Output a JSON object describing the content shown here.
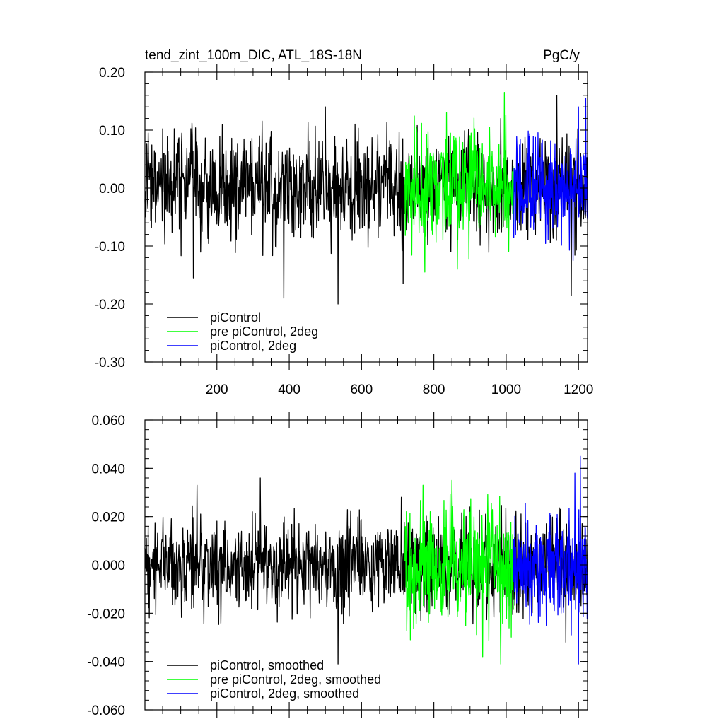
{
  "chart_data": [
    {
      "type": "line",
      "title": "tend_zint_100m_DIC, ATL_18S-18N",
      "units_label": "PgC/y",
      "xlabel": "",
      "ylabel": "",
      "xlim": [
        1,
        1225
      ],
      "ylim": [
        -0.3,
        0.2
      ],
      "xticks": [
        200,
        400,
        600,
        800,
        1000,
        1200
      ],
      "xtick_labels": [
        "200",
        "400",
        "600",
        "800",
        "1000",
        "1200"
      ],
      "show_xtick_labels": true,
      "yticks": [
        0.2,
        0.1,
        0.0,
        -0.1,
        -0.2,
        -0.3
      ],
      "ytick_labels": [
        "0.20",
        "0.10",
        "0.00",
        "-0.10",
        "-0.20",
        "-0.30"
      ],
      "grid": false,
      "legend_position": "bottom-left",
      "series": [
        {
          "name": "piControl",
          "color": "#000000",
          "x_start": 1,
          "x_end": 1225,
          "mean": 0.0,
          "std": 0.045,
          "extremes": [
            [
              715,
              -0.165
            ],
            [
              385,
              -0.19
            ],
            [
              535,
              -0.2
            ],
            [
              1180,
              -0.185
            ],
            [
              135,
              -0.155
            ],
            [
              500,
              0.14
            ],
            [
              1140,
              0.16
            ],
            [
              985,
              0.12
            ]
          ]
        },
        {
          "name": "pre piControl, 2deg",
          "color": "#00ff00",
          "x_start": 720,
          "x_end": 1020,
          "mean": 0.0,
          "std": 0.05,
          "extremes": [
            [
              775,
              -0.145
            ],
            [
              865,
              -0.14
            ],
            [
              995,
              0.165
            ],
            [
              835,
              0.13
            ]
          ]
        },
        {
          "name": "piControl, 2deg",
          "color": "#0000ff",
          "x_start": 1020,
          "x_end": 1225,
          "mean": 0.0,
          "std": 0.045,
          "extremes": [
            [
              1220,
              0.155
            ],
            [
              1185,
              -0.125
            ],
            [
              1200,
              0.14
            ]
          ]
        }
      ]
    },
    {
      "type": "line",
      "title": "",
      "xlabel": "",
      "ylabel": "",
      "xlim": [
        1,
        1225
      ],
      "ylim": [
        -0.06,
        0.06
      ],
      "xticks": [
        200,
        400,
        600,
        800,
        1000,
        1200
      ],
      "xtick_labels": [],
      "show_xtick_labels": false,
      "yticks": [
        0.06,
        0.04,
        0.02,
        0.0,
        -0.02,
        -0.04,
        -0.06
      ],
      "ytick_labels": [
        "0.060",
        "0.040",
        "0.020",
        "0.000",
        "-0.020",
        "-0.040",
        "-0.060"
      ],
      "grid": false,
      "legend_position": "bottom-left",
      "series": [
        {
          "name": "piControl, smoothed",
          "color": "#000000",
          "x_start": 1,
          "x_end": 1225,
          "mean": 0.0,
          "std": 0.0095,
          "extremes": [
            [
              535,
              -0.041
            ],
            [
              320,
              0.036
            ],
            [
              145,
              0.033
            ],
            [
              1165,
              -0.032
            ],
            [
              710,
              0.028
            ]
          ]
        },
        {
          "name": "pre piControl, 2deg, smoothed",
          "color": "#00ff00",
          "x_start": 720,
          "x_end": 1020,
          "mean": 0.0,
          "std": 0.012,
          "extremes": [
            [
              935,
              -0.038
            ],
            [
              985,
              -0.041
            ],
            [
              770,
              0.033
            ],
            [
              850,
              0.035
            ],
            [
              735,
              -0.031
            ]
          ]
        },
        {
          "name": "piControl, 2deg, smoothed",
          "color": "#0000ff",
          "x_start": 1020,
          "x_end": 1225,
          "mean": 0.0,
          "std": 0.011,
          "extremes": [
            [
              1205,
              0.045
            ],
            [
              1200,
              -0.041
            ],
            [
              1190,
              0.038
            ],
            [
              1180,
              -0.029
            ]
          ]
        }
      ]
    }
  ]
}
